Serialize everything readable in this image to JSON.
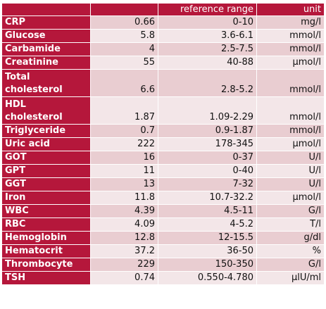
{
  "header": {
    "col1": "",
    "col2": "",
    "col3": "reference range",
    "col4": "unit"
  },
  "rows": [
    {
      "name": "CRP",
      "value": "0.66",
      "range": "0-10",
      "unit": "mg/l"
    },
    {
      "name": "Glucose",
      "value": "5.8",
      "range": "3.6-6.1",
      "unit": "mmol/l"
    },
    {
      "name": "Carbamide",
      "value": "4",
      "range": "2.5-7.5",
      "unit": "mmol/l"
    },
    {
      "name": "Creatinine",
      "value": "55",
      "range": "40-88",
      "unit": "μmol/l"
    },
    {
      "name": "Total",
      "name2": "cholesterol",
      "value": "6.6",
      "range": "2.8-5.2",
      "unit": "mmol/l"
    },
    {
      "name": "HDL",
      "name2": "cholesterol",
      "value": "1.87",
      "range": "1.09-2.29",
      "unit": "mmol/l"
    },
    {
      "name": "Triglyceride",
      "value": "0.7",
      "range": "0.9-1.87",
      "unit": "mmol/l"
    },
    {
      "name": "Uric acid",
      "value": "222",
      "range": "178-345",
      "unit": "μmol/l"
    },
    {
      "name": "GOT",
      "value": "16",
      "range": "0-37",
      "unit": "U/l"
    },
    {
      "name": "GPT",
      "value": "11",
      "range": "0-40",
      "unit": "U/l"
    },
    {
      "name": "GGT",
      "value": "13",
      "range": "7-32",
      "unit": "U/l"
    },
    {
      "name": "Iron",
      "value": "11.8",
      "range": "10.7-32.2",
      "unit": "μmol/l"
    },
    {
      "name": "WBC",
      "value": "4.39",
      "range": "4.5-11",
      "unit": "G/l"
    },
    {
      "name": "RBC",
      "value": "4.09",
      "range": "4-5.2",
      "unit": "T/l"
    },
    {
      "name": "Hemoglobin",
      "value": "12.8",
      "range": "12-15.5",
      "unit": "g/dl"
    },
    {
      "name": "Hematocrit",
      "value": "37.2",
      "range": "36-50",
      "unit": "%"
    },
    {
      "name": "Thrombocyte",
      "value": "229",
      "range": "150-350",
      "unit": "G/l"
    },
    {
      "name": "TSH",
      "value": "0.74",
      "range": "0.550-4.780",
      "unit": "μlU/ml"
    }
  ]
}
